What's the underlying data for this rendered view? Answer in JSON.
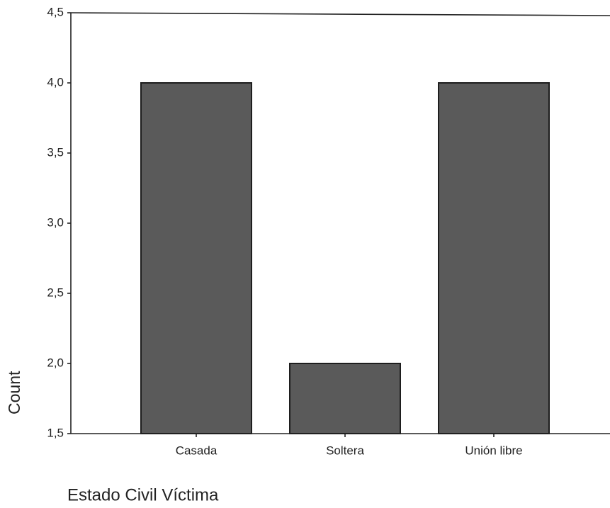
{
  "chart_data": {
    "type": "bar",
    "xlabel": "Estado Civil Víctima",
    "ylabel": "Count",
    "categories": [
      "Casada",
      "Soltera",
      "Unión libre"
    ],
    "values": [
      4,
      2,
      4
    ],
    "color": "#5a5a5a",
    "ylim": [
      1.5,
      4.5
    ],
    "yticks": [
      {
        "value": 1.5,
        "label": "1,5"
      },
      {
        "value": 2.0,
        "label": "2,0"
      },
      {
        "value": 2.5,
        "label": "2,5"
      },
      {
        "value": 3.0,
        "label": "3,0"
      },
      {
        "value": 3.5,
        "label": "3,5"
      },
      {
        "value": 4.0,
        "label": "4,0"
      },
      {
        "value": 4.5,
        "label": "4,5"
      }
    ],
    "grid": false
  }
}
